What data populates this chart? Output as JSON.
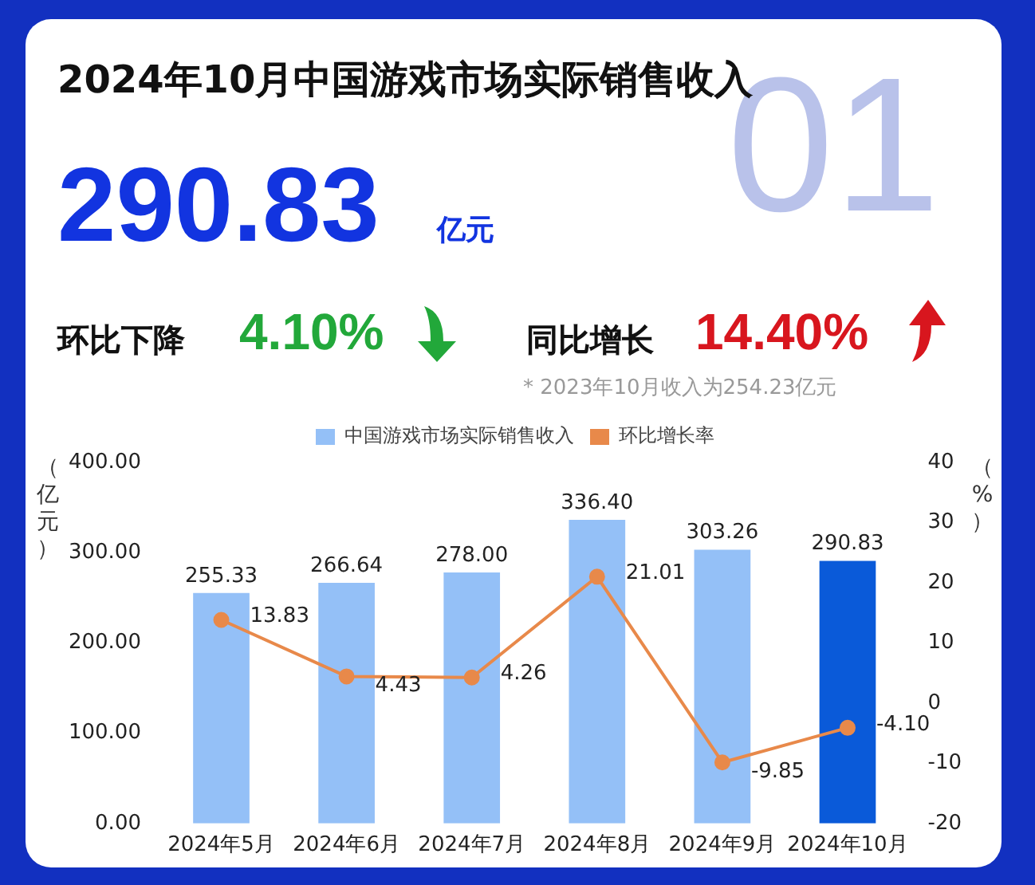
{
  "chart_data": {
    "type": "bar",
    "title": "2024年10月中国游戏市场实际销售收入",
    "annotations": [
      "01",
      "290.83",
      "亿元",
      "环比下降",
      "4.10%",
      "同比增长",
      "14.40%",
      "* 2023年10月收入为254.23亿元"
    ],
    "categories": [
      "2024年5月",
      "2024年6月",
      "2024年7月",
      "2024年8月",
      "2024年9月",
      "2024年10月"
    ],
    "series": [
      {
        "name": "中国游戏市场实际销售收入",
        "color": "#94c0f7",
        "colors": [
          "#94c0f7",
          "#94c0f7",
          "#94c0f7",
          "#94c0f7",
          "#94c0f7",
          "#0a5ad9"
        ],
        "values": [
          255.33,
          266.64,
          278.0,
          336.4,
          303.26,
          290.83
        ],
        "value_labels": [
          "255.33",
          "266.64",
          "278.00",
          "336.40",
          "303.26",
          "290.83"
        ]
      },
      {
        "name": "环比增长率",
        "type": "line",
        "axis": "y2",
        "color": "#e8894a",
        "values": [
          13.83,
          4.43,
          4.26,
          21.01,
          -9.85,
          -4.1
        ],
        "value_labels": [
          "13.83",
          "4.43",
          "4.26",
          "21.01",
          "-9.85",
          "-4.10"
        ]
      }
    ],
    "ylabel": "（亿元）",
    "y2label": "（%）",
    "ylim": [
      0,
      400
    ],
    "yticks": [
      {
        "value": 0,
        "label": "0.00"
      },
      {
        "value": 100,
        "label": "100.00"
      },
      {
        "value": 200,
        "label": "200.00"
      },
      {
        "value": 300,
        "label": "300.00"
      },
      {
        "value": 400,
        "label": "400.00"
      }
    ],
    "y2lim": [
      -20,
      40
    ],
    "y2ticks": [
      -20,
      -10,
      0,
      10,
      20,
      30,
      40
    ],
    "grid": false,
    "legend": "top",
    "marker": "circle",
    "line_style": "solid"
  }
}
